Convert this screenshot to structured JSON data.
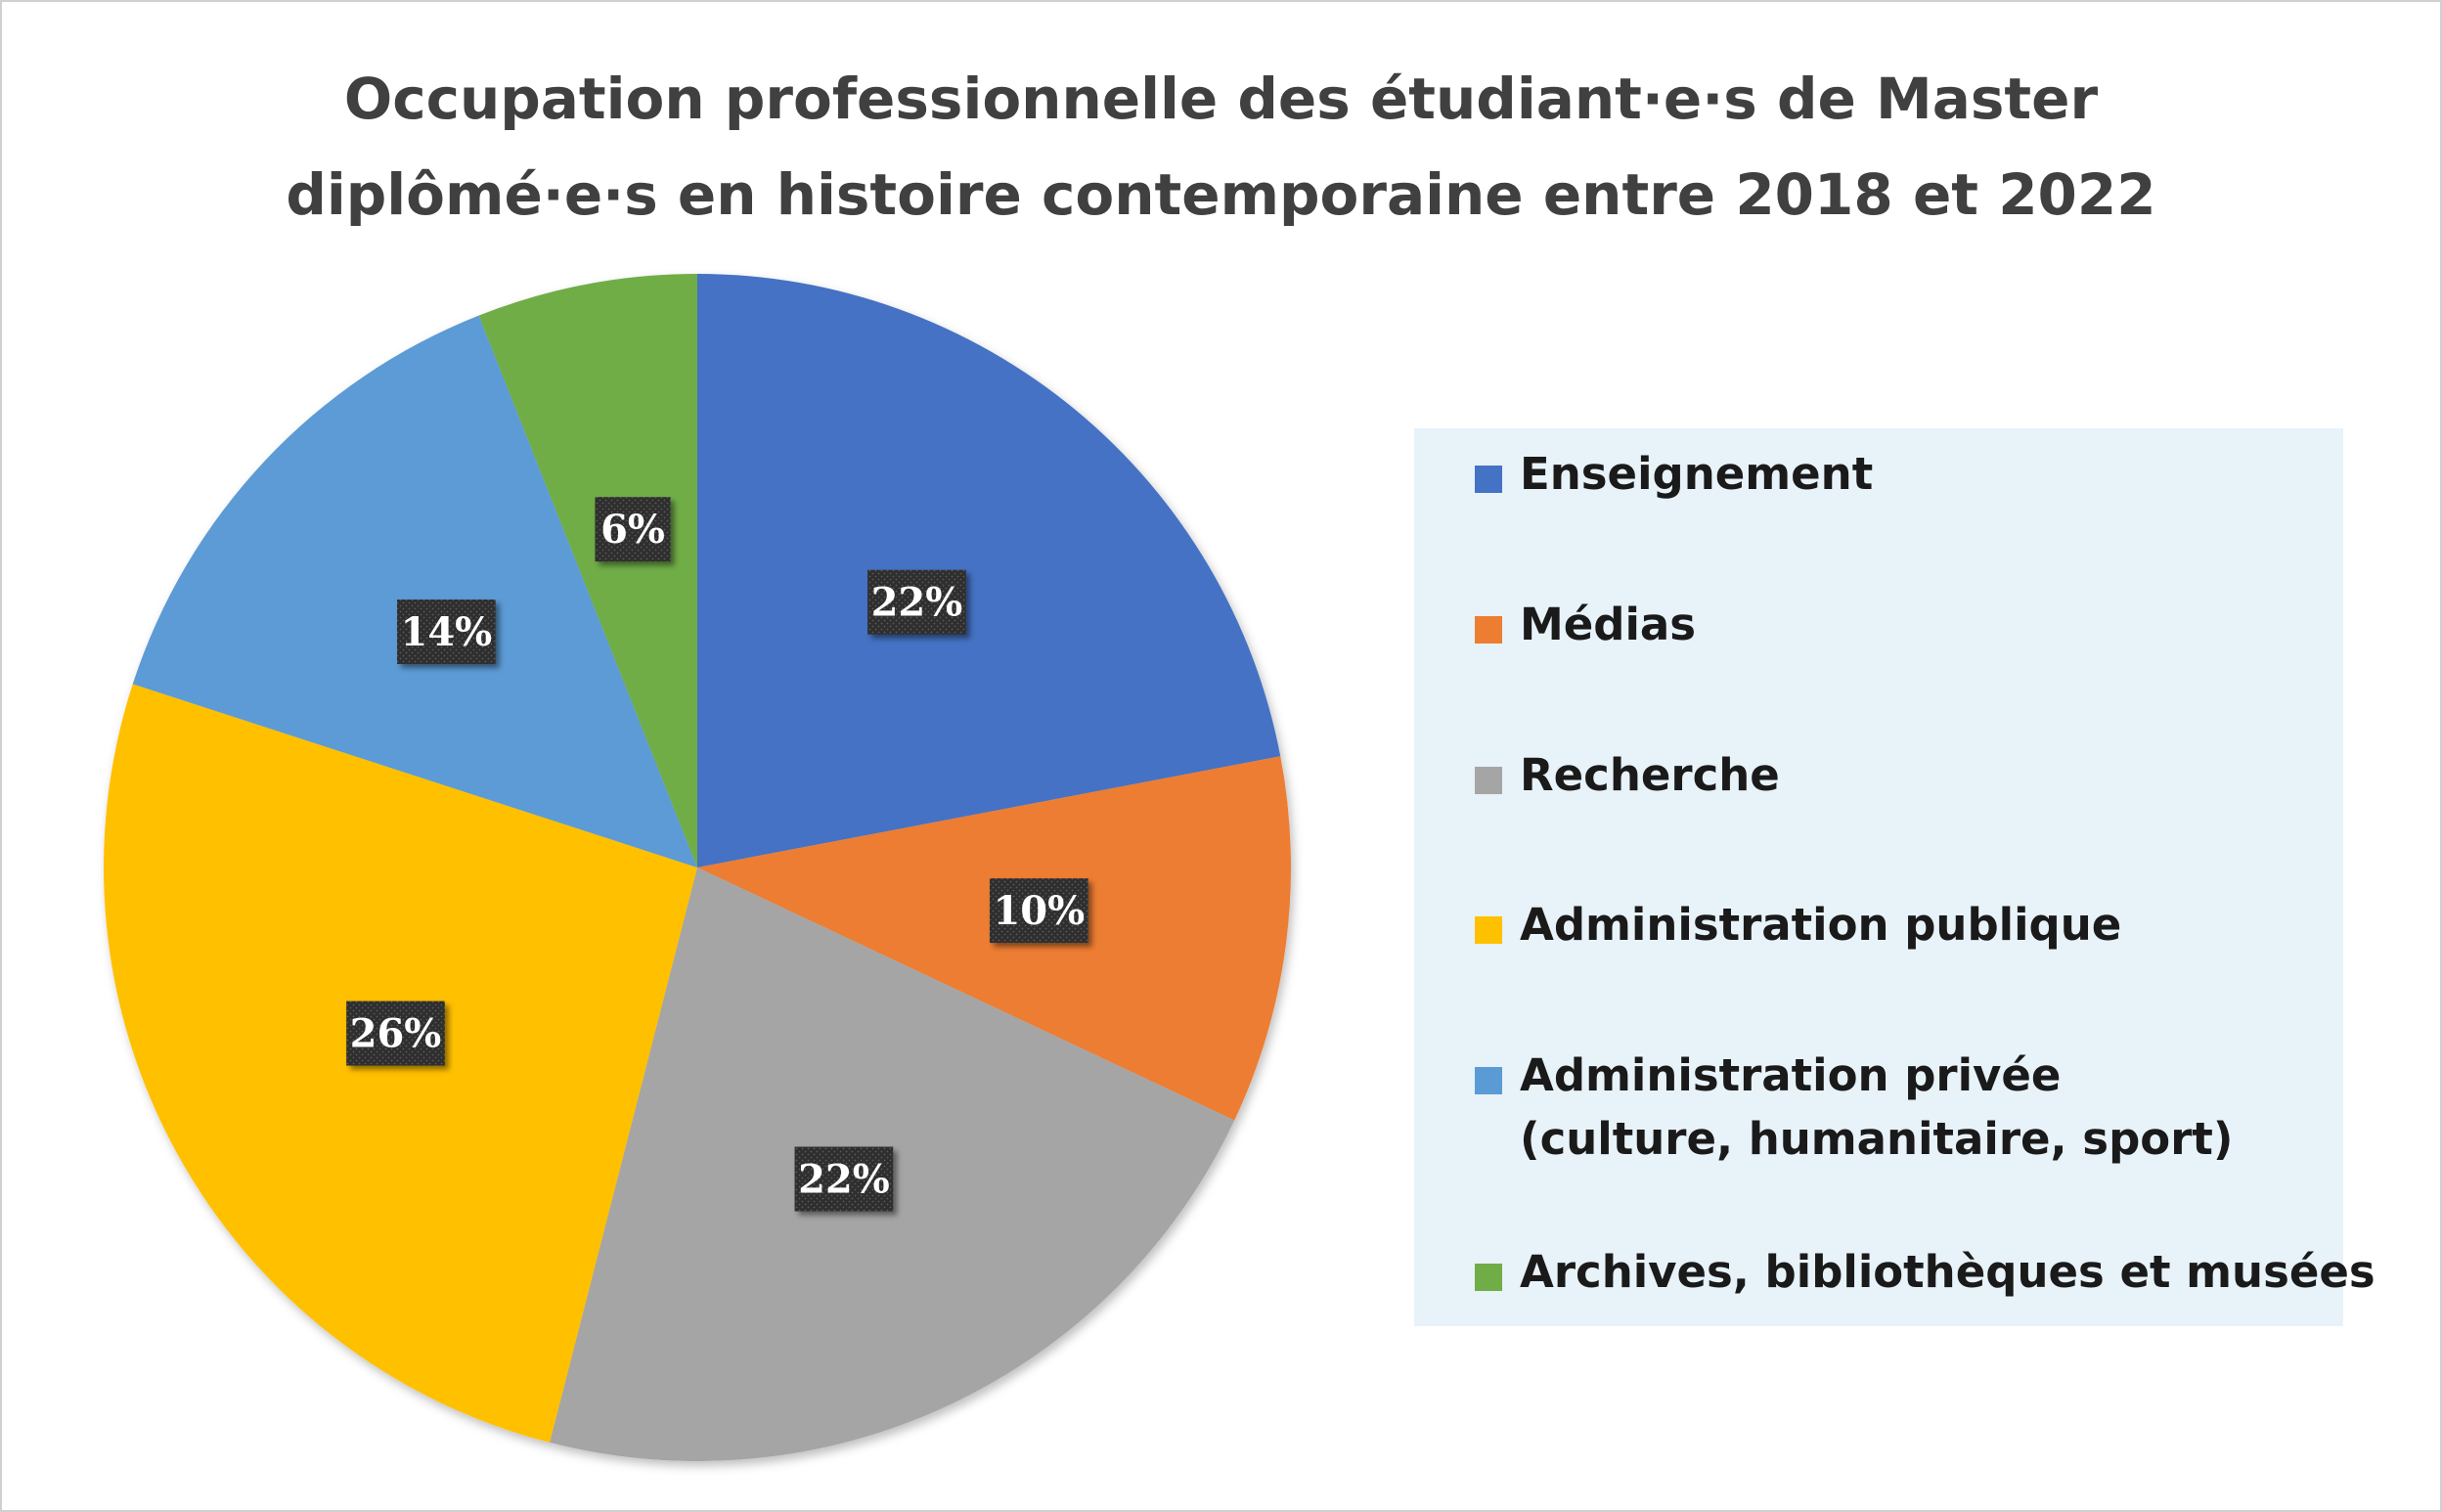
{
  "chart_data": {
    "type": "pie",
    "title": "Occupation professionnelle des étudiant·e·s de Master diplômé·e·s en histoire contemporaine entre 2018 et 2022",
    "title_lines": [
      "Occupation professionnelle des étudiant·e·s de Master",
      "diplômé·e·s en histoire contemporaine entre 2018 et 2022"
    ],
    "legend_position": "right",
    "slices": [
      {
        "name": "Enseignement",
        "legend_lines": [
          "Enseignement"
        ],
        "value": 22,
        "label": "22%",
        "color": "#4472c4"
      },
      {
        "name": "Médias",
        "legend_lines": [
          "Médias"
        ],
        "value": 10,
        "label": "10%",
        "color": "#ed7d31"
      },
      {
        "name": "Recherche",
        "legend_lines": [
          "Recherche"
        ],
        "value": 22,
        "label": "22%",
        "color": "#a5a5a5"
      },
      {
        "name": "Administration publique",
        "legend_lines": [
          "Administration publique"
        ],
        "value": 26,
        "label": "26%",
        "color": "#ffc000"
      },
      {
        "name": "Administration privée (culture, humanitaire, sport)",
        "legend_lines": [
          "Administration privée",
          "(culture, humanitaire, sport)"
        ],
        "value": 14,
        "label": "14%",
        "color": "#5b9bd5"
      },
      {
        "name": "Archives, bibliothèques et musées",
        "legend_lines": [
          "Archives, bibliothèques et musées"
        ],
        "value": 6,
        "label": "6%",
        "color": "#70ad47"
      }
    ]
  }
}
